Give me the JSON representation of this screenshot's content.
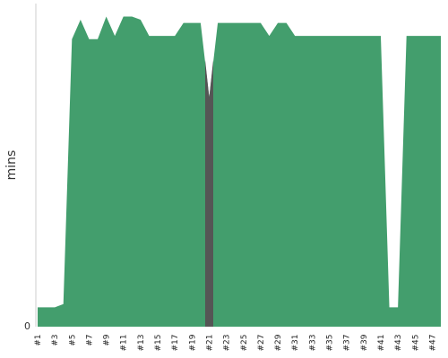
{
  "chart_data": {
    "type": "area",
    "title": "",
    "xlabel": "",
    "ylabel": "mins",
    "x": [
      "#1",
      "#2",
      "#3",
      "#4",
      "#5",
      "#6",
      "#7",
      "#8",
      "#9",
      "#10",
      "#11",
      "#12",
      "#13",
      "#14",
      "#15",
      "#16",
      "#17",
      "#18",
      "#19",
      "#20",
      "#21",
      "#22",
      "#23",
      "#24",
      "#25",
      "#26",
      "#27",
      "#28",
      "#29",
      "#30",
      "#31",
      "#32",
      "#33",
      "#34",
      "#35",
      "#36",
      "#37",
      "#38",
      "#39",
      "#40",
      "#41",
      "#42",
      "#43",
      "#44",
      "#45",
      "#46",
      "#47",
      "#48"
    ],
    "x_tick_labels": [
      "#1",
      "#3",
      "#5",
      "#7",
      "#9",
      "#11",
      "#13",
      "#15",
      "#17",
      "#19",
      "#21",
      "#23",
      "#25",
      "#27",
      "#29",
      "#31",
      "#33",
      "#35",
      "#37",
      "#39",
      "#41",
      "#43",
      "#45",
      "#47"
    ],
    "y_tick_labels": [
      "0"
    ],
    "y_ticks": [
      0
    ],
    "ylim": [
      0,
      100
    ],
    "grid": false,
    "legend": "none",
    "values": [
      6,
      6,
      6,
      7,
      89,
      95,
      89,
      89,
      96,
      90,
      96,
      96,
      95,
      90,
      90,
      90,
      90,
      94,
      94,
      94,
      71,
      94,
      94,
      94,
      94,
      94,
      94,
      90,
      94,
      94,
      90,
      90,
      90,
      90,
      90,
      90,
      90,
      90,
      90,
      90,
      90,
      6,
      6,
      90,
      90,
      90,
      90,
      90
    ],
    "highlight_index": 20,
    "colors": {
      "area": "#439e6d",
      "highlight": "#555555",
      "axis": "#cccccc"
    }
  }
}
